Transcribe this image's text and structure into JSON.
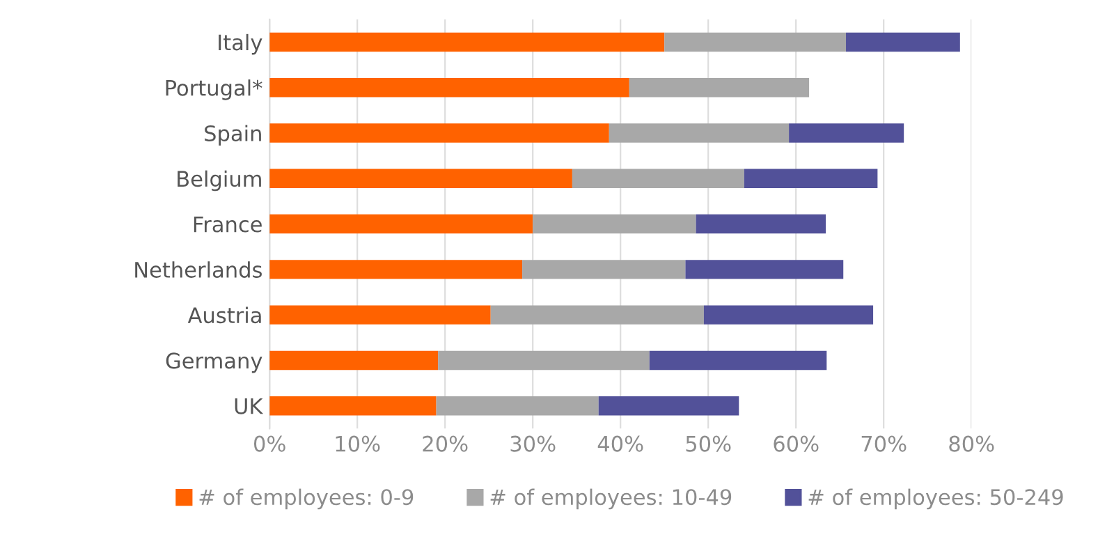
{
  "chart_data": {
    "type": "bar",
    "orientation": "horizontal",
    "stacked": true,
    "categories": [
      "Italy",
      "Portugal*",
      "Spain",
      "Belgium",
      "France",
      "Netherlands",
      "Austria",
      "Germany",
      "UK"
    ],
    "series": [
      {
        "name": "# of employees: 0-9",
        "color": "#ff6200",
        "values": [
          45.0,
          41.0,
          38.7,
          34.5,
          30.0,
          28.8,
          25.2,
          19.2,
          19.0
        ]
      },
      {
        "name": "# of employees: 10-49",
        "color": "#a8a8a8",
        "values": [
          20.7,
          20.5,
          20.5,
          19.6,
          18.6,
          18.6,
          24.3,
          24.1,
          18.5
        ]
      },
      {
        "name": "# of employees: 50-249",
        "color": "#525199",
        "values": [
          13.0,
          null,
          13.1,
          15.2,
          14.8,
          18.0,
          19.3,
          20.2,
          16.0
        ]
      }
    ],
    "xlim": [
      0,
      80
    ],
    "xticks": [
      {
        "value": 0,
        "label": "0%"
      },
      {
        "value": 10,
        "label": "10%"
      },
      {
        "value": 20,
        "label": "20%"
      },
      {
        "value": 30,
        "label": "30%"
      },
      {
        "value": 40,
        "label": "40%"
      },
      {
        "value": 50,
        "label": "50%"
      },
      {
        "value": 60,
        "label": "60%"
      },
      {
        "value": 70,
        "label": "70%"
      },
      {
        "value": 80,
        "label": "80%"
      }
    ],
    "grid": "x",
    "legend": "bottom"
  }
}
